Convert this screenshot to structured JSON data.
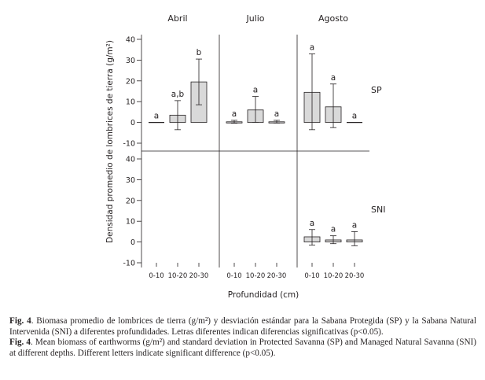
{
  "chart_data": {
    "type": "bar",
    "y_axis_label": "Densidad promedio de lombrices de tierra (g/m²)",
    "x_axis_label": "Profundidad (cm)",
    "columns": [
      "Abril",
      "Julio",
      "Agosto"
    ],
    "rows": [
      "SP",
      "SNI"
    ],
    "categories": [
      "0-10",
      "10-20",
      "20-30"
    ],
    "y_ticks": [
      "40",
      "30",
      "20",
      "10",
      "0",
      "-10"
    ],
    "ylim": [
      -10,
      40
    ],
    "error_bars": "standard deviation",
    "bar_color": "#d9d9d9",
    "panels": [
      {
        "column": "Abril",
        "row": "SP",
        "values": [
          0,
          3.5,
          19.5
        ],
        "err_low": [
          0,
          -3.5,
          8.5
        ],
        "err_high": [
          0,
          10.5,
          30.5
        ],
        "letters": [
          "a",
          "a,b",
          "b"
        ],
        "show_box": [
          false,
          true,
          true
        ]
      },
      {
        "column": "Julio",
        "row": "SP",
        "values": [
          0.3,
          6,
          0.3
        ],
        "err_low": [
          -0.4,
          0,
          -0.3
        ],
        "err_high": [
          1,
          12.5,
          1
        ],
        "letters": [
          "a",
          "a",
          "a"
        ],
        "show_box": [
          true,
          true,
          true
        ]
      },
      {
        "column": "Agosto",
        "row": "SP",
        "values": [
          14.5,
          7.5,
          0
        ],
        "err_low": [
          -3.5,
          -2.5,
          0
        ],
        "err_high": [
          33,
          18.5,
          0
        ],
        "letters": [
          "a",
          "a",
          "a"
        ],
        "show_box": [
          true,
          true,
          false
        ]
      },
      {
        "column": "Abril",
        "row": "SNI",
        "values": [],
        "err_low": [],
        "err_high": [],
        "letters": [],
        "show_box": []
      },
      {
        "column": "Julio",
        "row": "SNI",
        "values": [],
        "err_low": [],
        "err_high": [],
        "letters": [],
        "show_box": []
      },
      {
        "column": "Agosto",
        "row": "SNI",
        "values": [
          2.5,
          1,
          1
        ],
        "err_low": [
          -1.5,
          -0.8,
          -1.8
        ],
        "err_high": [
          6,
          3,
          5
        ],
        "letters": [
          "a",
          "a",
          "a"
        ],
        "show_box": [
          true,
          true,
          true
        ]
      }
    ]
  },
  "caption": {
    "es_label": "Fig. 4",
    "es_text": ". Biomasa promedio de lombrices de tierra (g/m²) y desviación estándar para la Sabana Protegida (SP) y la Sabana Natural Intervenida (SNI) a diferentes profundidades. Letras diferentes indican diferencias significativas (p<0.05).",
    "en_label": "Fig. 4",
    "en_text": ". Mean biomass of earthworms (g/m²) and standard deviation in Protected Savanna (SP) and Managed Natural Savanna (SNI) at different depths. Different letters indicate significant difference (p<0.05)."
  }
}
